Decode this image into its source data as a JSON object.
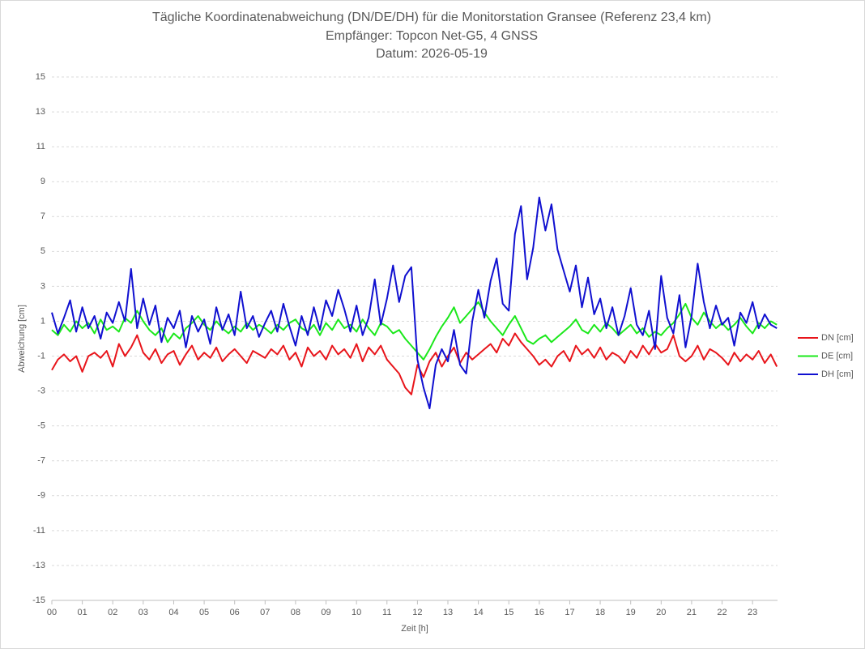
{
  "chart_data": {
    "type": "line",
    "title": "Tägliche Koordinatenabweichung (DN/DE/DH) für die Monitorstation Gransee (Referenz 23,4 km)",
    "subtitle": "Empfänger: Topcon Net-G5, 4 GNSS",
    "date_line": "Datum: 2026-05-19",
    "x_label": "Zeit [h]",
    "y_label": "Abweichung [cm]",
    "xlim": [
      0,
      23.82
    ],
    "xticks": [
      {
        "value": 0,
        "label": "00"
      },
      {
        "value": 1,
        "label": "01"
      },
      {
        "value": 2,
        "label": "02"
      },
      {
        "value": 3,
        "label": "03"
      },
      {
        "value": 4,
        "label": "04"
      },
      {
        "value": 5,
        "label": "05"
      },
      {
        "value": 6,
        "label": "06"
      },
      {
        "value": 7,
        "label": "07"
      },
      {
        "value": 8,
        "label": "08"
      },
      {
        "value": 9,
        "label": "09"
      },
      {
        "value": 10,
        "label": "10"
      },
      {
        "value": 11,
        "label": "11"
      },
      {
        "value": 12,
        "label": "12"
      },
      {
        "value": 13,
        "label": "13"
      },
      {
        "value": 14,
        "label": "14"
      },
      {
        "value": 15,
        "label": "15"
      },
      {
        "value": 16,
        "label": "16"
      },
      {
        "value": 17,
        "label": "17"
      },
      {
        "value": 18,
        "label": "18"
      },
      {
        "value": 19,
        "label": "19"
      },
      {
        "value": 20,
        "label": "20"
      },
      {
        "value": 21,
        "label": "21"
      },
      {
        "value": 22,
        "label": "22"
      },
      {
        "value": 23,
        "label": "23"
      }
    ],
    "ylim": [
      -15,
      15
    ],
    "yticks": [
      -15,
      -13,
      -11,
      -9,
      -7,
      -5,
      -3,
      -1,
      1,
      3,
      5,
      7,
      9,
      11,
      13,
      15
    ],
    "grid": true,
    "legend": "right",
    "x": [
      0,
      0.2,
      0.4,
      0.6,
      0.8,
      1,
      1.2,
      1.4,
      1.6,
      1.8,
      2,
      2.2,
      2.4,
      2.6,
      2.8,
      3,
      3.2,
      3.4,
      3.6,
      3.8,
      4,
      4.2,
      4.4,
      4.6,
      4.8,
      5,
      5.2,
      5.4,
      5.6,
      5.8,
      6,
      6.2,
      6.4,
      6.6,
      6.8,
      7,
      7.2,
      7.4,
      7.6,
      7.8,
      8,
      8.2,
      8.4,
      8.6,
      8.8,
      9,
      9.2,
      9.4,
      9.6,
      9.8,
      10,
      10.2,
      10.4,
      10.6,
      10.8,
      11,
      11.2,
      11.4,
      11.6,
      11.8,
      12,
      12.2,
      12.4,
      12.6,
      12.8,
      13,
      13.2,
      13.4,
      13.6,
      13.8,
      14,
      14.2,
      14.4,
      14.6,
      14.8,
      15,
      15.2,
      15.4,
      15.6,
      15.8,
      16,
      16.2,
      16.4,
      16.6,
      16.8,
      17,
      17.2,
      17.4,
      17.6,
      17.8,
      18,
      18.2,
      18.4,
      18.6,
      18.8,
      19,
      19.2,
      19.4,
      19.6,
      19.8,
      20,
      20.2,
      20.4,
      20.6,
      20.8,
      21,
      21.2,
      21.4,
      21.6,
      21.8,
      22,
      22.2,
      22.4,
      22.6,
      22.8,
      23,
      23.2,
      23.4,
      23.6,
      23.8
    ],
    "series": [
      {
        "name": "DN [cm]",
        "color": "#e8151b",
        "values": [
          -1.8,
          -1.2,
          -0.9,
          -1.3,
          -1.0,
          -1.9,
          -1.0,
          -0.8,
          -1.1,
          -0.7,
          -1.6,
          -0.3,
          -1.0,
          -0.5,
          0.2,
          -0.8,
          -1.2,
          -0.6,
          -1.4,
          -0.9,
          -0.7,
          -1.5,
          -0.9,
          -0.4,
          -1.2,
          -0.8,
          -1.1,
          -0.5,
          -1.3,
          -0.9,
          -0.6,
          -1.0,
          -1.4,
          -0.7,
          -0.9,
          -1.1,
          -0.6,
          -0.9,
          -0.4,
          -1.2,
          -0.8,
          -1.6,
          -0.5,
          -1.0,
          -0.7,
          -1.2,
          -0.4,
          -0.9,
          -0.6,
          -1.1,
          -0.3,
          -1.3,
          -0.5,
          -0.9,
          -0.4,
          -1.2,
          -1.6,
          -2.0,
          -2.8,
          -3.2,
          -1.5,
          -2.2,
          -1.3,
          -0.8,
          -1.6,
          -1.0,
          -0.5,
          -1.4,
          -0.8,
          -1.2,
          -0.9,
          -0.6,
          -0.3,
          -0.8,
          0.0,
          -0.4,
          0.3,
          -0.2,
          -0.6,
          -1.0,
          -1.5,
          -1.2,
          -1.6,
          -1.0,
          -0.7,
          -1.3,
          -0.4,
          -0.9,
          -0.6,
          -1.1,
          -0.5,
          -1.2,
          -0.8,
          -1.0,
          -1.4,
          -0.7,
          -1.1,
          -0.4,
          -0.9,
          -0.3,
          -0.8,
          -0.6,
          0.2,
          -1.0,
          -1.3,
          -1.0,
          -0.4,
          -1.2,
          -0.6,
          -0.8,
          -1.1,
          -1.5,
          -0.8,
          -1.3,
          -0.9,
          -1.2,
          -0.7,
          -1.4,
          -0.9,
          -1.6
        ]
      },
      {
        "name": "DE [cm]",
        "color": "#1be81b",
        "values": [
          0.5,
          0.2,
          0.8,
          0.4,
          1.0,
          0.6,
          0.9,
          0.3,
          1.1,
          0.5,
          0.7,
          0.4,
          1.2,
          0.9,
          1.6,
          1.0,
          0.5,
          0.2,
          0.6,
          -0.2,
          0.3,
          0.0,
          0.6,
          0.9,
          1.3,
          0.8,
          0.5,
          1.0,
          0.6,
          0.3,
          0.7,
          0.4,
          0.9,
          0.5,
          0.8,
          0.6,
          0.3,
          0.8,
          0.5,
          0.9,
          1.1,
          0.6,
          0.4,
          0.8,
          0.2,
          0.9,
          0.5,
          1.1,
          0.6,
          0.8,
          0.4,
          1.1,
          0.6,
          0.2,
          0.9,
          0.7,
          0.3,
          0.5,
          0.0,
          -0.4,
          -0.8,
          -1.2,
          -0.6,
          0.1,
          0.7,
          1.2,
          1.8,
          0.9,
          1.3,
          1.7,
          2.1,
          1.5,
          1.0,
          0.6,
          0.2,
          0.8,
          1.3,
          0.6,
          -0.1,
          -0.3,
          0.0,
          0.2,
          -0.2,
          0.1,
          0.4,
          0.7,
          1.1,
          0.5,
          0.3,
          0.8,
          0.4,
          0.9,
          0.6,
          0.2,
          0.5,
          0.8,
          0.3,
          0.6,
          0.1,
          0.4,
          0.2,
          0.6,
          0.9,
          1.4,
          2.0,
          1.2,
          0.8,
          1.5,
          1.0,
          0.6,
          0.9,
          0.5,
          0.8,
          1.2,
          0.7,
          0.3,
          0.9,
          0.6,
          1.0,
          0.8
        ]
      },
      {
        "name": "DH [cm]",
        "color": "#1010d0",
        "values": [
          1.5,
          0.3,
          1.2,
          2.2,
          0.4,
          1.8,
          0.6,
          1.3,
          0.0,
          1.5,
          0.9,
          2.1,
          1.0,
          4.0,
          0.6,
          2.3,
          0.8,
          1.9,
          -0.2,
          1.2,
          0.6,
          1.6,
          -0.5,
          1.3,
          0.4,
          1.1,
          -0.3,
          1.8,
          0.5,
          1.4,
          0.2,
          2.7,
          0.6,
          1.3,
          0.1,
          0.9,
          1.6,
          0.4,
          2.0,
          0.7,
          -0.4,
          1.3,
          0.2,
          1.8,
          0.5,
          2.2,
          1.3,
          2.8,
          1.7,
          0.4,
          1.9,
          0.2,
          1.2,
          3.4,
          0.8,
          2.3,
          4.2,
          2.1,
          3.6,
          4.1,
          -1.2,
          -2.8,
          -4.0,
          -1.5,
          -0.6,
          -1.3,
          0.5,
          -1.5,
          -2.0,
          1.0,
          2.8,
          1.2,
          3.3,
          4.6,
          2.0,
          1.6,
          6.0,
          7.6,
          3.4,
          5.2,
          8.1,
          6.2,
          7.7,
          5.1,
          3.9,
          2.7,
          4.2,
          1.8,
          3.5,
          1.4,
          2.3,
          0.6,
          1.8,
          0.2,
          1.3,
          2.9,
          0.8,
          0.2,
          1.6,
          -0.6,
          3.6,
          1.2,
          0.3,
          2.5,
          -0.5,
          1.3,
          4.3,
          2.1,
          0.6,
          1.9,
          0.8,
          1.2,
          -0.4,
          1.5,
          0.9,
          2.1,
          0.6,
          1.4,
          0.8,
          0.6
        ]
      }
    ]
  }
}
